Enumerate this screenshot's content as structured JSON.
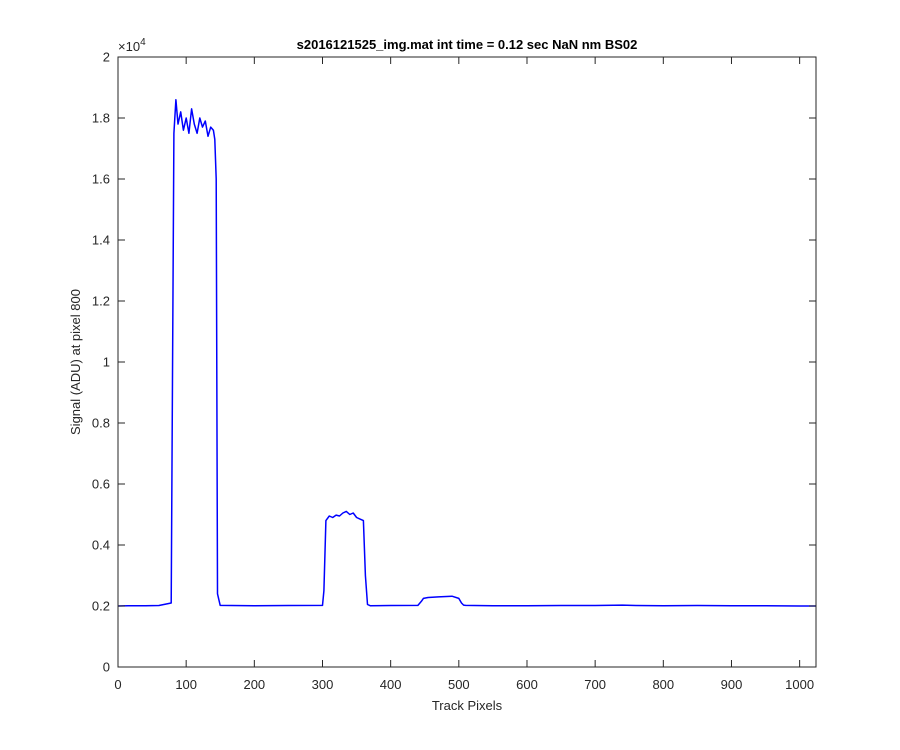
{
  "chart_data": {
    "type": "line",
    "title": "s2016121525_img.mat int time = 0.12 sec  NaN nm BS02",
    "xlabel": "Track Pixels",
    "ylabel": "Signal (ADU) at pixel 800",
    "xlim": [
      0,
      1024
    ],
    "ylim": [
      0,
      20000
    ],
    "y_exponent_label": "×10",
    "y_exponent_power": "4",
    "x_ticks": [
      0,
      100,
      200,
      300,
      400,
      500,
      600,
      700,
      800,
      900,
      1000
    ],
    "x_tick_labels": [
      "0",
      "100",
      "200",
      "300",
      "400",
      "500",
      "600",
      "700",
      "800",
      "900",
      "1000"
    ],
    "y_ticks": [
      0,
      2000,
      4000,
      6000,
      8000,
      10000,
      12000,
      14000,
      16000,
      18000,
      20000
    ],
    "y_tick_labels": [
      "0",
      "0.2",
      "0.4",
      "0.6",
      "0.8",
      "1",
      "1.2",
      "1.4",
      "1.6",
      "1.8",
      "2"
    ],
    "grid": false,
    "line_color": "#0000ff",
    "series": [
      {
        "x": [
          0,
          20,
          40,
          60,
          78,
          82,
          85,
          88,
          92,
          96,
          100,
          104,
          108,
          112,
          116,
          120,
          124,
          128,
          132,
          136,
          140,
          142,
          144,
          146,
          150,
          200,
          250,
          300,
          302,
          305,
          310,
          315,
          320,
          325,
          330,
          335,
          340,
          345,
          350,
          355,
          360,
          363,
          366,
          370,
          400,
          440,
          445,
          448,
          455,
          470,
          490,
          500,
          504,
          507,
          510,
          550,
          600,
          650,
          700,
          740,
          760,
          800,
          850,
          900,
          950,
          1000,
          1024
        ],
        "y": [
          2000,
          2010,
          2005,
          2015,
          2100,
          17500,
          18600,
          17800,
          18200,
          17600,
          18000,
          17500,
          18300,
          17800,
          17500,
          18000,
          17700,
          17900,
          17400,
          17700,
          17600,
          17300,
          16000,
          2400,
          2020,
          2010,
          2015,
          2020,
          2500,
          4800,
          4950,
          4900,
          4980,
          4950,
          5050,
          5100,
          5000,
          5050,
          4900,
          4850,
          4800,
          3000,
          2050,
          2010,
          2015,
          2020,
          2150,
          2250,
          2280,
          2300,
          2320,
          2250,
          2100,
          2030,
          2020,
          2010,
          2010,
          2015,
          2015,
          2030,
          2015,
          2010,
          2015,
          2010,
          2005,
          2000,
          2000
        ]
      }
    ]
  }
}
